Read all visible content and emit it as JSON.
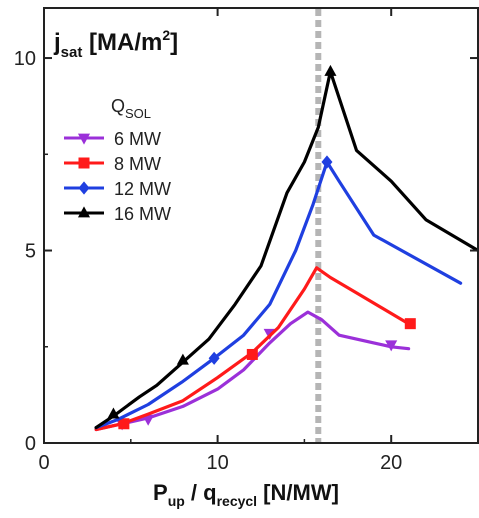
{
  "chart_data": {
    "type": "line",
    "title": "",
    "ylabel": {
      "main": "j",
      "sub": "sat",
      "unit": "[MA/m",
      "sup": "2",
      "close": "]"
    },
    "xlabel": {
      "p": "P",
      "p_sub": "up",
      "sep": " / q",
      "q_sub": "recycl",
      "unit": " [N/MW]"
    },
    "xlim": [
      0,
      25
    ],
    "ylim": [
      0,
      11.3
    ],
    "x_ticks": [
      0,
      10,
      20
    ],
    "x_tick_labels": [
      "0",
      "10",
      "20"
    ],
    "y_ticks": [
      0,
      5,
      10
    ],
    "y_tick_labels": [
      "0",
      "5",
      "10"
    ],
    "vline_x": 15.8,
    "legend": {
      "title_main": "Q",
      "title_sub": "SOL",
      "placement": "upper-left"
    },
    "series": [
      {
        "name": "6 MW",
        "color": "#9b30d9",
        "marker": "triangle-down",
        "x": [
          3.0,
          4.0,
          6.0,
          8.0,
          10.0,
          11.5,
          13.0,
          14.2,
          15.2,
          16.0,
          17.0,
          19.0,
          20.0,
          21.0
        ],
        "y": [
          0.35,
          0.45,
          0.65,
          0.95,
          1.4,
          1.9,
          2.6,
          3.1,
          3.4,
          3.2,
          2.8,
          2.6,
          2.5,
          2.45
        ],
        "markers_x": [
          4.5,
          6.0,
          13.0,
          20.0
        ],
        "markers_y": [
          0.5,
          0.62,
          2.85,
          2.55
        ]
      },
      {
        "name": "8 MW",
        "color": "#ff1a1a",
        "marker": "square",
        "x": [
          3.0,
          4.5,
          6.0,
          8.0,
          10.0,
          12.0,
          13.5,
          15.0,
          15.7,
          16.5,
          18.0,
          21.0
        ],
        "y": [
          0.35,
          0.5,
          0.75,
          1.1,
          1.7,
          2.35,
          3.0,
          4.0,
          4.55,
          4.3,
          3.9,
          3.1
        ],
        "markers_x": [
          4.6,
          12.0,
          21.1
        ],
        "markers_y": [
          0.5,
          2.3,
          3.1
        ]
      },
      {
        "name": "12 MW",
        "color": "#1f3fe0",
        "marker": "diamond",
        "x": [
          3.0,
          4.2,
          6.0,
          8.0,
          9.8,
          11.5,
          13.0,
          14.5,
          15.5,
          16.3,
          17.0,
          19.0,
          24.0
        ],
        "y": [
          0.4,
          0.6,
          1.0,
          1.6,
          2.2,
          2.8,
          3.6,
          5.0,
          6.2,
          7.3,
          6.8,
          5.4,
          4.15
        ],
        "markers_x": [
          9.8,
          16.3
        ],
        "markers_y": [
          2.2,
          7.3
        ]
      },
      {
        "name": "16 MW",
        "color": "#000000",
        "marker": "triangle-up",
        "x": [
          3.0,
          4.0,
          5.5,
          6.5,
          8.0,
          9.5,
          11.0,
          12.5,
          14.0,
          15.0,
          15.8,
          16.5,
          18.0,
          20.0,
          22.0,
          25.0
        ],
        "y": [
          0.4,
          0.7,
          1.2,
          1.5,
          2.1,
          2.7,
          3.6,
          4.6,
          6.5,
          7.3,
          8.2,
          9.65,
          7.6,
          6.8,
          5.8,
          5.0
        ],
        "markers_x": [
          4.0,
          8.0,
          16.5
        ],
        "markers_y": [
          0.75,
          2.15,
          9.65
        ]
      }
    ]
  }
}
